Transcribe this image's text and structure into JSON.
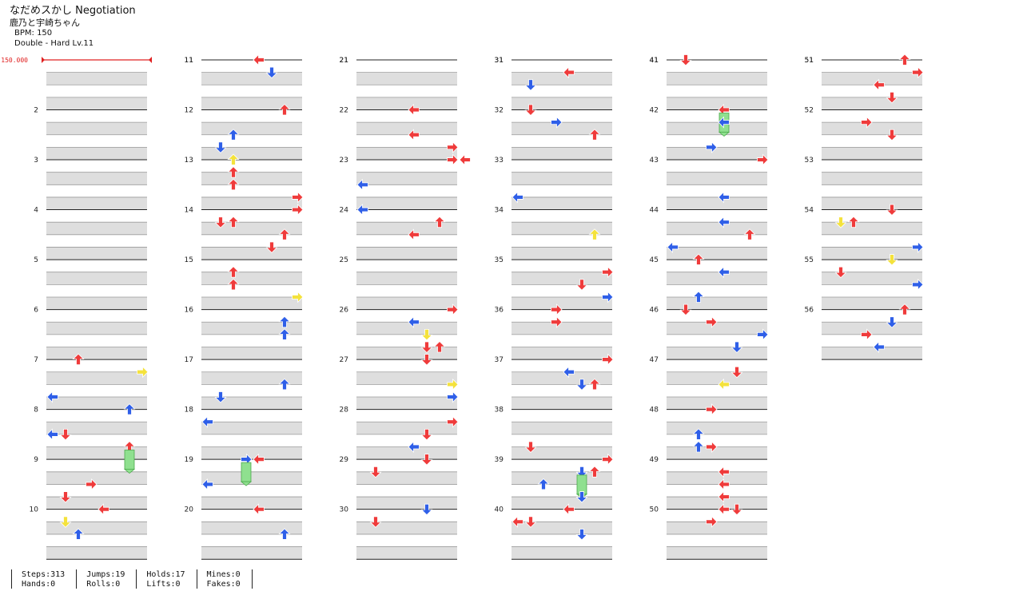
{
  "header": {
    "title": "なだめスかし Negotiation",
    "artist": "鹿乃と宇崎ちゃん",
    "bpm": "BPM: 150",
    "difficulty": "Double - Hard Lv.11"
  },
  "bpm_marker": "150.000",
  "measures": [
    "2",
    "3",
    "4",
    "5",
    "6",
    "7",
    "8",
    "9",
    "10",
    "11",
    "12",
    "13",
    "14",
    "15",
    "16",
    "17",
    "18",
    "19",
    "20",
    "21",
    "22",
    "23",
    "24",
    "25",
    "26",
    "27",
    "28",
    "29",
    "30",
    "31",
    "32",
    "33",
    "34",
    "35",
    "36",
    "37",
    "38",
    "39",
    "40",
    "41",
    "42",
    "43",
    "44",
    "45",
    "46",
    "47",
    "48",
    "49",
    "50",
    "51",
    "52",
    "53",
    "54",
    "55",
    "56"
  ],
  "stats": [
    [
      "Steps:313",
      "Hands:0"
    ],
    [
      "Jumps:19",
      "Rolls:0"
    ],
    [
      "Holds:17",
      "Lifts:0"
    ],
    [
      "Mines:0",
      "Fakes:0"
    ]
  ],
  "colors": {
    "red": "#ef3b3b",
    "blue": "#2f5fe8",
    "yellow": "#f4e23c",
    "hold": "#8fe08f",
    "lane": "#dedede",
    "bpm": "#e02020"
  },
  "arrow_icons": [
    "left-arrow-icon",
    "down-arrow-icon",
    "up-arrow-icon",
    "right-arrow-icon"
  ]
}
